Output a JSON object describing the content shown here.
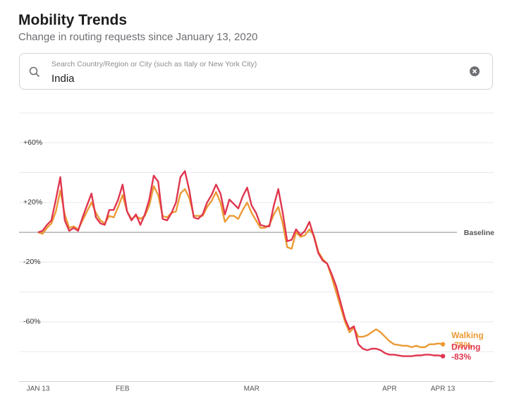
{
  "header": {
    "title": "Mobility Trends",
    "subtitle": "Change in routing requests since January 13, 2020"
  },
  "search": {
    "placeholder": "Search Country/Region or City (such as Italy or New York City)",
    "value": "India"
  },
  "chart_data": {
    "type": "line",
    "categories": [
      "JAN 13",
      null,
      null,
      null,
      null,
      null,
      null,
      null,
      null,
      null,
      null,
      null,
      null,
      null,
      null,
      null,
      null,
      null,
      null,
      "FEB",
      null,
      null,
      null,
      null,
      null,
      null,
      null,
      null,
      null,
      null,
      null,
      null,
      null,
      null,
      null,
      null,
      null,
      null,
      null,
      null,
      null,
      null,
      null,
      null,
      null,
      null,
      null,
      null,
      "MAR",
      null,
      null,
      null,
      null,
      null,
      null,
      null,
      null,
      null,
      null,
      null,
      null,
      null,
      null,
      null,
      null,
      null,
      null,
      null,
      null,
      null,
      null,
      null,
      null,
      null,
      null,
      null,
      null,
      null,
      null,
      "APR",
      null,
      null,
      null,
      null,
      null,
      null,
      null,
      null,
      null,
      null,
      null,
      "APR 13"
    ],
    "series": [
      {
        "name": "Walking",
        "color": "#eb9b34",
        "last_label": "-75%",
        "values": [
          0,
          -1,
          3,
          6,
          14,
          28,
          12,
          3,
          4,
          2,
          8,
          14,
          20,
          13,
          8,
          6,
          11,
          10,
          17,
          25,
          14,
          9,
          11,
          9,
          11,
          18,
          31,
          25,
          11,
          10,
          13,
          14,
          26,
          29,
          23,
          11,
          11,
          11,
          17,
          21,
          27,
          20,
          7,
          11,
          11,
          9,
          15,
          20,
          13,
          8,
          3,
          3,
          5,
          12,
          17,
          6,
          -10,
          -11,
          0,
          -3,
          -2,
          2,
          -2,
          -13,
          -18,
          -21,
          -30,
          -40,
          -50,
          -60,
          -67,
          -64,
          -70,
          -70,
          -69,
          -67,
          -65,
          -67,
          -70,
          -73,
          -75,
          -75.5,
          -76,
          -76,
          -77,
          -76,
          -77,
          -77,
          -75,
          -75,
          -74.5,
          -75
        ]
      },
      {
        "name": "Driving",
        "color": "#e0364f",
        "last_label": "-83%",
        "values": [
          0,
          1,
          5,
          8,
          22,
          37,
          8,
          1,
          3,
          1,
          10,
          18,
          26,
          10,
          6,
          5,
          15,
          15,
          22,
          32,
          14,
          8,
          12,
          5,
          12,
          22,
          38,
          34,
          9,
          8,
          13,
          20,
          37,
          41,
          28,
          10,
          9,
          12,
          20,
          25,
          32,
          26,
          12,
          22,
          19,
          16,
          24,
          30,
          18,
          13,
          5,
          4,
          4,
          18,
          29,
          13,
          -6,
          -5,
          2,
          -2,
          1,
          7,
          -3,
          -14,
          -19,
          -21,
          -28,
          -36,
          -47,
          -58,
          -65,
          -63,
          -75,
          -78,
          -79,
          -78,
          -78,
          -79,
          -81,
          -82,
          -82,
          -82.5,
          -83,
          -83,
          -83,
          -82.5,
          -82.5,
          -82,
          -82,
          -82.5,
          -82.5,
          -83
        ]
      }
    ],
    "ylim": [
      -100,
      80
    ],
    "yticks": [
      {
        "value": 80,
        "label": null
      },
      {
        "value": 60,
        "label": "+60%"
      },
      {
        "value": 40,
        "label": null
      },
      {
        "value": 20,
        "label": "+20%"
      },
      {
        "value": 0,
        "label": "Baseline"
      },
      {
        "value": -20,
        "label": "-20%"
      },
      {
        "value": -40,
        "label": null
      },
      {
        "value": -60,
        "label": "-60%"
      },
      {
        "value": -80,
        "label": null
      }
    ],
    "grid": true
  }
}
